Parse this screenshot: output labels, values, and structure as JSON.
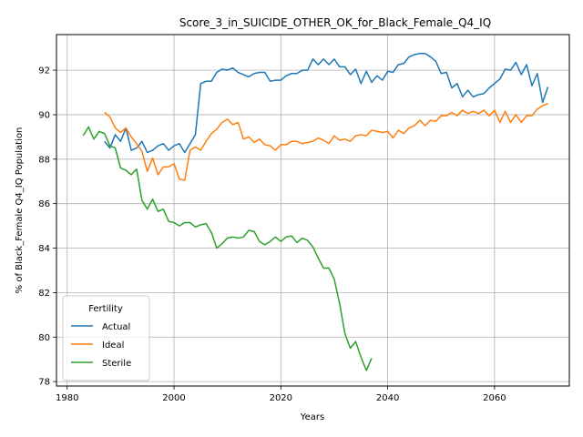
{
  "chart_data": {
    "type": "line",
    "title": "Score_3_in_SUICIDE_OTHER_OK_for_Black_Female_Q4_IQ",
    "xlabel": "Years",
    "ylabel": "% of Black_Female Q4_IQ Population",
    "xlim": [
      1978,
      2074
    ],
    "ylim": [
      77.8,
      93.6
    ],
    "xticks": [
      1980,
      2000,
      2020,
      2040,
      2060
    ],
    "yticks": [
      78,
      80,
      82,
      84,
      86,
      88,
      90,
      92
    ],
    "grid": true,
    "legend": {
      "title": "Fertility",
      "placement": "lower-left"
    },
    "series": [
      {
        "name": "Actual",
        "color": "#1f77b4",
        "x": [
          1987,
          1988,
          1989,
          1990,
          1991,
          1992,
          1993,
          1994,
          1995,
          1996,
          1997,
          1998,
          1999,
          2000,
          2001,
          2002,
          2003,
          2004,
          2005,
          2006,
          2007,
          2008,
          2009,
          2010,
          2011,
          2012,
          2013,
          2014,
          2015,
          2016,
          2017,
          2018,
          2019,
          2020,
          2021,
          2022,
          2023,
          2024,
          2025,
          2026,
          2027,
          2028,
          2029,
          2030,
          2031,
          2032,
          2033,
          2034,
          2035,
          2036,
          2037,
          2038,
          2039,
          2040,
          2041,
          2042,
          2043,
          2044,
          2045,
          2046,
          2047,
          2048,
          2049,
          2050,
          2051,
          2052,
          2053,
          2054,
          2055,
          2056,
          2057,
          2058,
          2059,
          2060,
          2061,
          2062,
          2063,
          2064,
          2065,
          2066,
          2067,
          2068,
          2069,
          2070
        ],
        "y": [
          88.8,
          88.5,
          89.1,
          88.8,
          89.4,
          88.4,
          88.5,
          88.8,
          88.3,
          88.4,
          88.6,
          88.7,
          88.4,
          88.6,
          88.7,
          88.3,
          88.7,
          89.1,
          91.4,
          91.5,
          91.5,
          91.9,
          92.05,
          92.0,
          92.1,
          91.9,
          91.8,
          91.7,
          91.85,
          91.9,
          91.9,
          91.5,
          91.55,
          91.55,
          91.75,
          91.85,
          91.85,
          92.0,
          92.0,
          92.5,
          92.25,
          92.5,
          92.25,
          92.5,
          92.15,
          92.15,
          91.8,
          92.05,
          91.4,
          91.95,
          91.45,
          91.75,
          91.55,
          91.95,
          91.9,
          92.25,
          92.3,
          92.6,
          92.7,
          92.75,
          92.75,
          92.6,
          92.4,
          91.85,
          91.9,
          91.2,
          91.4,
          90.8,
          91.1,
          90.8,
          90.9,
          90.95,
          91.2,
          91.4,
          91.6,
          92.05,
          92.0,
          92.35,
          91.8,
          92.25,
          91.3,
          91.85,
          90.55,
          91.25
        ]
      },
      {
        "name": "Ideal",
        "color": "#ff7f0e",
        "x": [
          1987,
          1988,
          1989,
          1990,
          1991,
          1992,
          1993,
          1994,
          1995,
          1996,
          1997,
          1998,
          1999,
          2000,
          2001,
          2002,
          2003,
          2004,
          2005,
          2006,
          2007,
          2008,
          2009,
          2010,
          2011,
          2012,
          2013,
          2014,
          2015,
          2016,
          2017,
          2018,
          2019,
          2020,
          2021,
          2022,
          2023,
          2024,
          2025,
          2026,
          2027,
          2028,
          2029,
          2030,
          2031,
          2032,
          2033,
          2034,
          2035,
          2036,
          2037,
          2038,
          2039,
          2040,
          2041,
          2042,
          2043,
          2044,
          2045,
          2046,
          2047,
          2048,
          2049,
          2050,
          2051,
          2052,
          2053,
          2054,
          2055,
          2056,
          2057,
          2058,
          2059,
          2060,
          2061,
          2062,
          2063,
          2064,
          2065,
          2066,
          2067,
          2068,
          2069,
          2070
        ],
        "y": [
          90.1,
          89.9,
          89.4,
          89.2,
          89.4,
          89.0,
          88.7,
          88.35,
          87.45,
          88.05,
          87.3,
          87.65,
          87.65,
          87.8,
          87.1,
          87.05,
          88.4,
          88.55,
          88.4,
          88.8,
          89.15,
          89.35,
          89.65,
          89.8,
          89.55,
          89.65,
          88.9,
          89.0,
          88.75,
          88.9,
          88.65,
          88.6,
          88.4,
          88.65,
          88.65,
          88.8,
          88.8,
          88.7,
          88.75,
          88.8,
          88.95,
          88.85,
          88.7,
          89.05,
          88.85,
          88.9,
          88.8,
          89.05,
          89.1,
          89.05,
          89.3,
          89.25,
          89.2,
          89.25,
          88.95,
          89.3,
          89.15,
          89.4,
          89.5,
          89.75,
          89.5,
          89.75,
          89.7,
          89.95,
          89.95,
          90.1,
          89.95,
          90.2,
          90.05,
          90.15,
          90.05,
          90.2,
          89.95,
          90.2,
          89.65,
          90.15,
          89.65,
          90.0,
          89.65,
          89.95,
          89.95,
          90.25,
          90.4,
          90.5
        ]
      },
      {
        "name": "Sterile",
        "color": "#2ca02c",
        "x": [
          1983,
          1984,
          1985,
          1986,
          1987,
          1988,
          1989,
          1990,
          1991,
          1992,
          1993,
          1994,
          1995,
          1996,
          1997,
          1998,
          1999,
          2000,
          2001,
          2002,
          2003,
          2004,
          2005,
          2006,
          2007,
          2008,
          2009,
          2010,
          2011,
          2012,
          2013,
          2014,
          2015,
          2016,
          2017,
          2018,
          2019,
          2020,
          2021,
          2022,
          2023,
          2024,
          2025,
          2026,
          2027,
          2028,
          2029,
          2030,
          2031,
          2032,
          2033,
          2034,
          2035,
          2036,
          2037
        ],
        "y": [
          89.05,
          89.45,
          88.9,
          89.25,
          89.15,
          88.6,
          88.5,
          87.6,
          87.5,
          87.3,
          87.55,
          86.15,
          85.75,
          86.2,
          85.65,
          85.75,
          85.2,
          85.15,
          85.0,
          85.15,
          85.15,
          84.95,
          85.05,
          85.1,
          84.7,
          84.0,
          84.2,
          84.45,
          84.5,
          84.45,
          84.5,
          84.8,
          84.75,
          84.3,
          84.15,
          84.3,
          84.5,
          84.3,
          84.5,
          84.55,
          84.25,
          84.45,
          84.35,
          84.05,
          83.55,
          83.1,
          83.1,
          82.6,
          81.5,
          80.15,
          79.5,
          79.8,
          79.1,
          78.5,
          79.05
        ]
      }
    ]
  }
}
